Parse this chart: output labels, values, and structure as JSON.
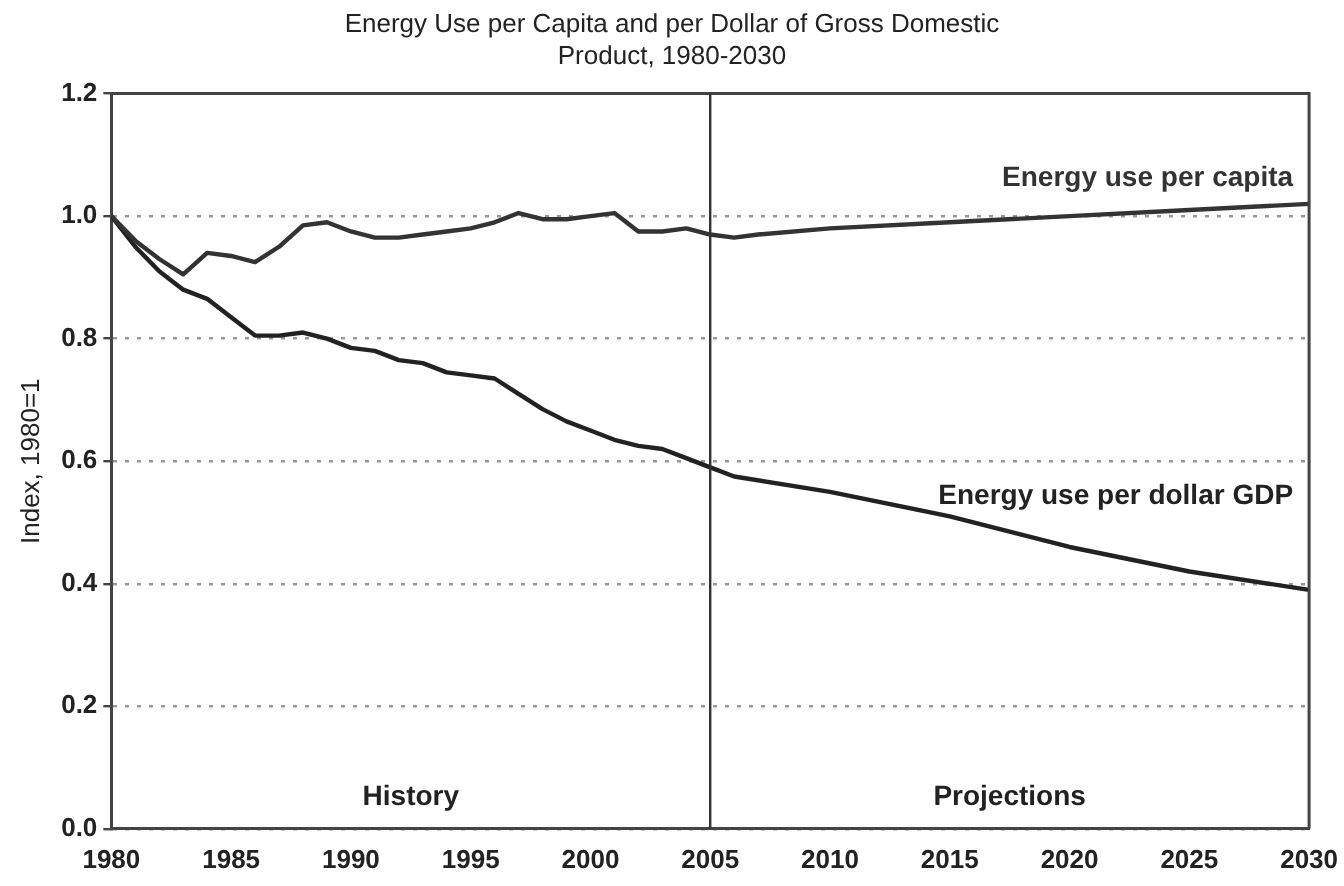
{
  "chart_data": {
    "type": "line",
    "title": "Energy Use per Capita and per Dollar of Gross Domestic Product, 1980-2030",
    "ylabel": "Index, 1980=1",
    "xlim": [
      1980,
      2030
    ],
    "xticks": [
      1980,
      1985,
      1990,
      1995,
      2000,
      2005,
      2010,
      2015,
      2020,
      2025,
      2030
    ],
    "ylim": [
      0,
      1.2
    ],
    "yticks": [
      {
        "value": 0,
        "label": "0.0"
      },
      0.2,
      0.4,
      0.6,
      0.8,
      {
        "value": 1,
        "label": "1.0"
      },
      1.2
    ],
    "grid": "y",
    "legend": false,
    "marker": "none",
    "line_style": "solid",
    "ref_lines": [
      {
        "axis": "x",
        "value": 2005,
        "color": "#333333"
      }
    ],
    "annotations": [
      "History",
      "Projections"
    ],
    "series": [
      {
        "name": "Energy use per capita",
        "color": "#333333",
        "x": [
          1980,
          1981,
          1982,
          1983,
          1984,
          1985,
          1986,
          1987,
          1988,
          1989,
          1990,
          1991,
          1992,
          1993,
          1994,
          1995,
          1996,
          1997,
          1998,
          1999,
          2000,
          2001,
          2002,
          2003,
          2004,
          2005,
          2006,
          2007,
          2010,
          2015,
          2020,
          2025,
          2030
        ],
        "values": [
          1.0,
          0.96,
          0.93,
          0.905,
          0.94,
          0.935,
          0.925,
          0.95,
          0.985,
          0.99,
          0.975,
          0.965,
          0.965,
          0.97,
          0.975,
          0.98,
          0.99,
          1.005,
          0.995,
          0.995,
          1.0,
          1.005,
          0.975,
          0.975,
          0.98,
          0.97,
          0.965,
          0.97,
          0.98,
          0.99,
          1.0,
          1.01,
          1.02
        ]
      },
      {
        "name": "Energy use per dollar GDP",
        "color": "#222222",
        "x": [
          1980,
          1981,
          1982,
          1983,
          1984,
          1985,
          1986,
          1987,
          1988,
          1989,
          1990,
          1991,
          1992,
          1993,
          1994,
          1995,
          1996,
          1997,
          1998,
          1999,
          2000,
          2001,
          2002,
          2003,
          2004,
          2005,
          2006,
          2010,
          2015,
          2020,
          2025,
          2030
        ],
        "values": [
          1.0,
          0.95,
          0.91,
          0.88,
          0.865,
          0.835,
          0.805,
          0.805,
          0.81,
          0.8,
          0.785,
          0.78,
          0.765,
          0.76,
          0.745,
          0.74,
          0.735,
          0.71,
          0.685,
          0.665,
          0.65,
          0.635,
          0.625,
          0.62,
          0.605,
          0.59,
          0.575,
          0.55,
          0.51,
          0.46,
          0.42,
          0.39
        ]
      }
    ]
  }
}
